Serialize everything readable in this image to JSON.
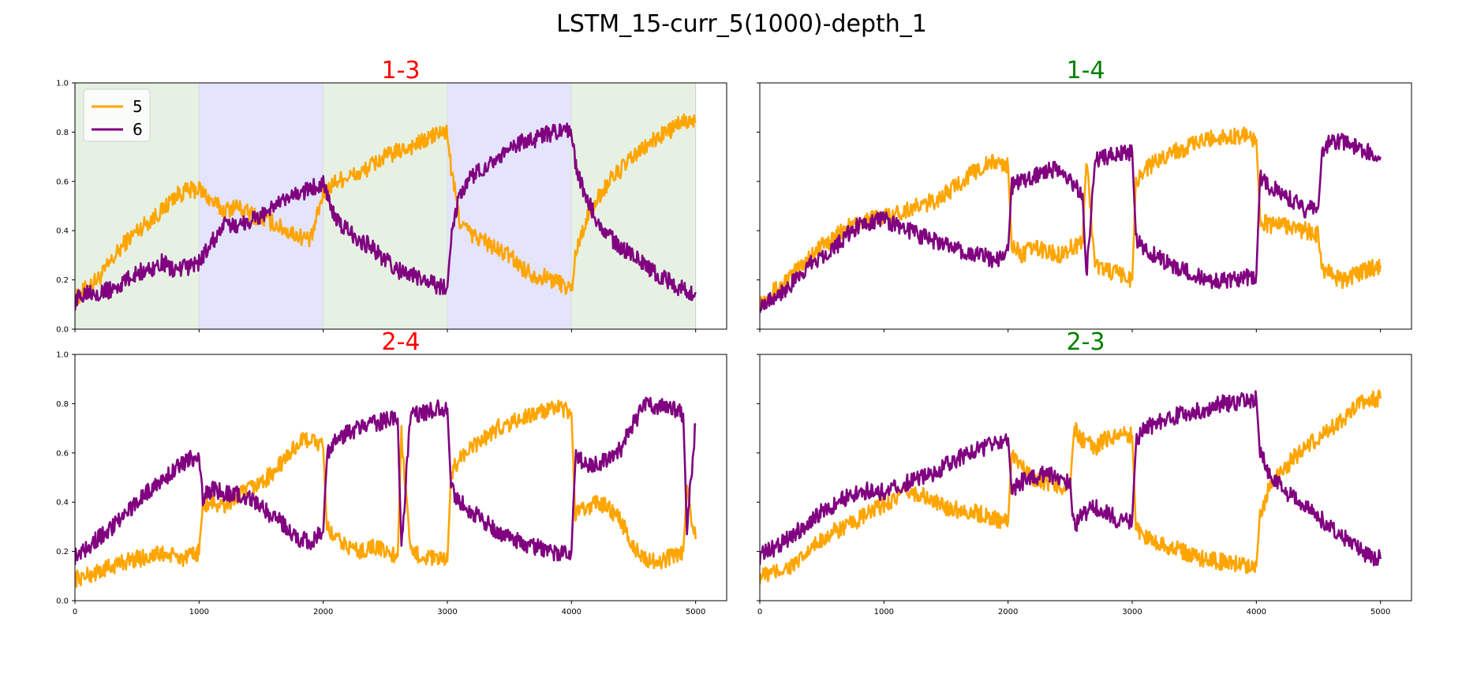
{
  "figure": {
    "title": "LSTM_15-curr_5(1000)-depth_1"
  },
  "chart_data": [
    {
      "type": "line",
      "title": "1-3",
      "title_color": "#ff0000",
      "xlim": [
        0,
        5250
      ],
      "ylim": [
        0,
        1
      ],
      "xticks": [
        0,
        1000,
        2000,
        3000,
        4000,
        5000
      ],
      "yticks": [
        0.0,
        0.2,
        0.4,
        0.6,
        0.8,
        1.0
      ],
      "show_xticklabels": false,
      "show_yticklabels": true,
      "legend": {
        "position": "upper-left",
        "entries": [
          "5",
          "6"
        ]
      },
      "bands": [
        {
          "x0": 0,
          "x1": 1000,
          "color": "#e6f1e4"
        },
        {
          "x0": 1000,
          "x1": 2000,
          "color": "#e4e4fd"
        },
        {
          "x0": 2000,
          "x1": 3000,
          "color": "#e6f1e4"
        },
        {
          "x0": 3000,
          "x1": 4000,
          "color": "#e4e4fd"
        },
        {
          "x0": 4000,
          "x1": 5000,
          "color": "#e6f1e4"
        }
      ],
      "series": [
        {
          "name": "5",
          "color": "#ffa500",
          "x": [
            0,
            100,
            200,
            300,
            400,
            500,
            600,
            700,
            800,
            900,
            1000,
            1100,
            1200,
            1300,
            1400,
            1500,
            1600,
            1700,
            1800,
            1900,
            2000,
            2100,
            2200,
            2300,
            2400,
            2500,
            2600,
            2700,
            2800,
            2900,
            3000,
            3030,
            3100,
            3200,
            3300,
            3400,
            3500,
            3600,
            3700,
            3800,
            3900,
            4000,
            4030,
            4100,
            4200,
            4300,
            4400,
            4500,
            4600,
            4700,
            4800,
            4900,
            5000
          ],
          "y": [
            0.12,
            0.17,
            0.21,
            0.28,
            0.35,
            0.4,
            0.44,
            0.48,
            0.54,
            0.56,
            0.57,
            0.52,
            0.48,
            0.5,
            0.47,
            0.45,
            0.43,
            0.4,
            0.38,
            0.36,
            0.55,
            0.6,
            0.62,
            0.63,
            0.67,
            0.7,
            0.72,
            0.74,
            0.76,
            0.79,
            0.8,
            0.65,
            0.44,
            0.38,
            0.36,
            0.32,
            0.3,
            0.25,
            0.22,
            0.21,
            0.19,
            0.16,
            0.3,
            0.42,
            0.52,
            0.6,
            0.65,
            0.7,
            0.74,
            0.78,
            0.81,
            0.84,
            0.84
          ]
        },
        {
          "name": "6",
          "color": "#800080",
          "x": [
            0,
            100,
            200,
            300,
            400,
            500,
            600,
            700,
            800,
            900,
            1000,
            1100,
            1200,
            1300,
            1400,
            1500,
            1600,
            1700,
            1800,
            1900,
            2000,
            2100,
            2200,
            2300,
            2400,
            2500,
            2600,
            2700,
            2800,
            2900,
            3000,
            3030,
            3100,
            3200,
            3300,
            3400,
            3500,
            3600,
            3700,
            3800,
            3900,
            4000,
            4030,
            4100,
            4200,
            4300,
            4400,
            4500,
            4600,
            4700,
            4800,
            4900,
            5000
          ],
          "y": [
            0.11,
            0.16,
            0.15,
            0.16,
            0.19,
            0.23,
            0.24,
            0.27,
            0.24,
            0.25,
            0.27,
            0.35,
            0.42,
            0.42,
            0.44,
            0.46,
            0.5,
            0.52,
            0.55,
            0.57,
            0.6,
            0.44,
            0.4,
            0.36,
            0.33,
            0.28,
            0.24,
            0.22,
            0.2,
            0.18,
            0.17,
            0.38,
            0.55,
            0.62,
            0.66,
            0.7,
            0.72,
            0.76,
            0.77,
            0.79,
            0.8,
            0.8,
            0.68,
            0.55,
            0.45,
            0.38,
            0.33,
            0.3,
            0.26,
            0.22,
            0.19,
            0.16,
            0.15
          ]
        }
      ]
    },
    {
      "type": "line",
      "title": "1-4",
      "title_color": "#008000",
      "xlim": [
        0,
        5250
      ],
      "ylim": [
        0,
        1
      ],
      "xticks": [
        0,
        1000,
        2000,
        3000,
        4000,
        5000
      ],
      "yticks": [
        0.0,
        0.2,
        0.4,
        0.6,
        0.8,
        1.0
      ],
      "show_xticklabels": false,
      "show_yticklabels": false,
      "series": [
        {
          "name": "5",
          "color": "#ffa500",
          "x": [
            0,
            100,
            200,
            300,
            400,
            500,
            600,
            700,
            800,
            900,
            1000,
            1100,
            1200,
            1300,
            1400,
            1500,
            1600,
            1700,
            1800,
            1900,
            2000,
            2030,
            2100,
            2200,
            2300,
            2400,
            2500,
            2600,
            2630,
            2700,
            2800,
            2900,
            3000,
            3030,
            3100,
            3200,
            3300,
            3400,
            3500,
            3600,
            3700,
            3800,
            3900,
            4000,
            4030,
            4100,
            4200,
            4300,
            4400,
            4500,
            4530,
            4600,
            4700,
            4800,
            4900,
            5000
          ],
          "y": [
            0.11,
            0.15,
            0.19,
            0.24,
            0.3,
            0.34,
            0.37,
            0.41,
            0.43,
            0.45,
            0.46,
            0.47,
            0.49,
            0.5,
            0.52,
            0.55,
            0.59,
            0.63,
            0.66,
            0.68,
            0.66,
            0.35,
            0.3,
            0.33,
            0.32,
            0.3,
            0.33,
            0.35,
            0.7,
            0.26,
            0.24,
            0.22,
            0.2,
            0.6,
            0.65,
            0.68,
            0.72,
            0.73,
            0.75,
            0.77,
            0.78,
            0.78,
            0.79,
            0.77,
            0.45,
            0.42,
            0.43,
            0.41,
            0.4,
            0.38,
            0.25,
            0.22,
            0.2,
            0.22,
            0.24,
            0.26
          ]
        },
        {
          "name": "6",
          "color": "#800080",
          "x": [
            0,
            100,
            200,
            300,
            400,
            500,
            600,
            700,
            800,
            900,
            1000,
            1100,
            1200,
            1300,
            1400,
            1500,
            1600,
            1700,
            1800,
            1900,
            2000,
            2030,
            2100,
            2200,
            2300,
            2400,
            2500,
            2600,
            2630,
            2700,
            2800,
            2900,
            3000,
            3030,
            3100,
            3200,
            3300,
            3400,
            3500,
            3600,
            3700,
            3800,
            3900,
            4000,
            4030,
            4100,
            4200,
            4300,
            4400,
            4500,
            4530,
            4600,
            4700,
            4800,
            4900,
            5000
          ],
          "y": [
            0.1,
            0.13,
            0.16,
            0.2,
            0.26,
            0.3,
            0.33,
            0.38,
            0.42,
            0.44,
            0.45,
            0.42,
            0.4,
            0.38,
            0.36,
            0.34,
            0.32,
            0.3,
            0.3,
            0.28,
            0.32,
            0.58,
            0.6,
            0.62,
            0.64,
            0.65,
            0.6,
            0.55,
            0.2,
            0.68,
            0.7,
            0.71,
            0.72,
            0.36,
            0.32,
            0.3,
            0.26,
            0.24,
            0.22,
            0.2,
            0.19,
            0.2,
            0.21,
            0.22,
            0.62,
            0.58,
            0.55,
            0.52,
            0.48,
            0.5,
            0.72,
            0.77,
            0.76,
            0.74,
            0.72,
            0.7
          ]
        }
      ]
    },
    {
      "type": "line",
      "title": "2-4",
      "title_color": "#ff0000",
      "xlim": [
        0,
        5250
      ],
      "ylim": [
        0,
        1
      ],
      "xticks": [
        0,
        1000,
        2000,
        3000,
        4000,
        5000
      ],
      "yticks": [
        0.0,
        0.2,
        0.4,
        0.6,
        0.8,
        1.0
      ],
      "show_xticklabels": true,
      "show_yticklabels": true,
      "series": [
        {
          "name": "5",
          "color": "#ffa500",
          "x": [
            0,
            100,
            200,
            300,
            400,
            500,
            600,
            700,
            800,
            900,
            1000,
            1030,
            1100,
            1200,
            1300,
            1400,
            1500,
            1600,
            1700,
            1800,
            1900,
            2000,
            2030,
            2100,
            2200,
            2300,
            2400,
            2500,
            2600,
            2630,
            2700,
            2800,
            2900,
            3000,
            3030,
            3100,
            3200,
            3300,
            3400,
            3500,
            3600,
            3700,
            3800,
            3900,
            4000,
            4030,
            4100,
            4200,
            4300,
            4400,
            4500,
            4600,
            4700,
            4800,
            4900,
            4930,
            5000
          ],
          "y": [
            0.09,
            0.1,
            0.12,
            0.14,
            0.16,
            0.17,
            0.18,
            0.19,
            0.18,
            0.17,
            0.2,
            0.38,
            0.4,
            0.38,
            0.42,
            0.45,
            0.48,
            0.52,
            0.58,
            0.64,
            0.66,
            0.62,
            0.3,
            0.25,
            0.22,
            0.2,
            0.22,
            0.2,
            0.18,
            0.68,
            0.2,
            0.18,
            0.17,
            0.16,
            0.52,
            0.58,
            0.62,
            0.66,
            0.7,
            0.72,
            0.74,
            0.76,
            0.77,
            0.78,
            0.76,
            0.35,
            0.37,
            0.4,
            0.38,
            0.32,
            0.22,
            0.17,
            0.15,
            0.18,
            0.2,
            0.45,
            0.25
          ]
        },
        {
          "name": "6",
          "color": "#800080",
          "x": [
            0,
            100,
            200,
            300,
            400,
            500,
            600,
            700,
            800,
            900,
            1000,
            1030,
            1100,
            1200,
            1300,
            1400,
            1500,
            1600,
            1700,
            1800,
            1900,
            2000,
            2030,
            2100,
            2200,
            2300,
            2400,
            2500,
            2600,
            2630,
            2700,
            2800,
            2900,
            3000,
            3030,
            3100,
            3200,
            3300,
            3400,
            3500,
            3600,
            3700,
            3800,
            3900,
            4000,
            4030,
            4100,
            4200,
            4300,
            4400,
            4500,
            4600,
            4700,
            4800,
            4900,
            4930,
            5000
          ],
          "y": [
            0.18,
            0.22,
            0.26,
            0.3,
            0.35,
            0.4,
            0.45,
            0.49,
            0.53,
            0.57,
            0.59,
            0.42,
            0.45,
            0.44,
            0.43,
            0.42,
            0.38,
            0.34,
            0.3,
            0.25,
            0.24,
            0.28,
            0.6,
            0.65,
            0.68,
            0.7,
            0.72,
            0.73,
            0.74,
            0.2,
            0.75,
            0.76,
            0.78,
            0.78,
            0.45,
            0.4,
            0.36,
            0.32,
            0.28,
            0.26,
            0.23,
            0.22,
            0.2,
            0.19,
            0.2,
            0.58,
            0.56,
            0.55,
            0.58,
            0.62,
            0.72,
            0.8,
            0.79,
            0.78,
            0.76,
            0.3,
            0.72
          ]
        }
      ]
    },
    {
      "type": "line",
      "title": "2-3",
      "title_color": "#008000",
      "xlim": [
        0,
        5250
      ],
      "ylim": [
        0,
        1
      ],
      "xticks": [
        0,
        1000,
        2000,
        3000,
        4000,
        5000
      ],
      "yticks": [
        0.0,
        0.2,
        0.4,
        0.6,
        0.8,
        1.0
      ],
      "show_xticklabels": true,
      "show_yticklabels": false,
      "series": [
        {
          "name": "5",
          "color": "#ffa500",
          "x": [
            0,
            100,
            200,
            300,
            400,
            500,
            600,
            700,
            800,
            900,
            1000,
            1100,
            1200,
            1300,
            1400,
            1500,
            1600,
            1700,
            1800,
            1900,
            2000,
            2030,
            2100,
            2200,
            2300,
            2400,
            2500,
            2530,
            2600,
            2700,
            2800,
            2900,
            3000,
            3030,
            3100,
            3200,
            3300,
            3400,
            3500,
            3600,
            3700,
            3800,
            3900,
            4000,
            4030,
            4100,
            4200,
            4300,
            4400,
            4500,
            4600,
            4700,
            4800,
            4900,
            5000
          ],
          "y": [
            0.1,
            0.11,
            0.13,
            0.15,
            0.2,
            0.25,
            0.28,
            0.3,
            0.33,
            0.36,
            0.39,
            0.42,
            0.44,
            0.43,
            0.4,
            0.38,
            0.37,
            0.36,
            0.35,
            0.33,
            0.32,
            0.6,
            0.55,
            0.5,
            0.48,
            0.47,
            0.46,
            0.7,
            0.65,
            0.62,
            0.66,
            0.68,
            0.67,
            0.3,
            0.26,
            0.24,
            0.22,
            0.2,
            0.18,
            0.17,
            0.16,
            0.15,
            0.15,
            0.14,
            0.35,
            0.45,
            0.52,
            0.58,
            0.62,
            0.66,
            0.7,
            0.74,
            0.78,
            0.82,
            0.82
          ]
        },
        {
          "name": "6",
          "color": "#800080",
          "x": [
            0,
            100,
            200,
            300,
            400,
            500,
            600,
            700,
            800,
            900,
            1000,
            1100,
            1200,
            1300,
            1400,
            1500,
            1600,
            1700,
            1800,
            1900,
            2000,
            2030,
            2100,
            2200,
            2300,
            2400,
            2500,
            2530,
            2600,
            2700,
            2800,
            2900,
            3000,
            3030,
            3100,
            3200,
            3300,
            3400,
            3500,
            3600,
            3700,
            3800,
            3900,
            4000,
            4030,
            4100,
            4200,
            4300,
            4400,
            4500,
            4600,
            4700,
            4800,
            4900,
            5000
          ],
          "y": [
            0.18,
            0.21,
            0.24,
            0.28,
            0.32,
            0.36,
            0.39,
            0.42,
            0.44,
            0.45,
            0.44,
            0.46,
            0.48,
            0.5,
            0.52,
            0.55,
            0.58,
            0.6,
            0.62,
            0.64,
            0.66,
            0.45,
            0.48,
            0.5,
            0.52,
            0.5,
            0.48,
            0.3,
            0.35,
            0.38,
            0.36,
            0.32,
            0.33,
            0.65,
            0.7,
            0.72,
            0.74,
            0.76,
            0.77,
            0.78,
            0.8,
            0.8,
            0.81,
            0.82,
            0.6,
            0.52,
            0.46,
            0.42,
            0.38,
            0.34,
            0.3,
            0.26,
            0.22,
            0.18,
            0.17
          ]
        }
      ]
    }
  ]
}
